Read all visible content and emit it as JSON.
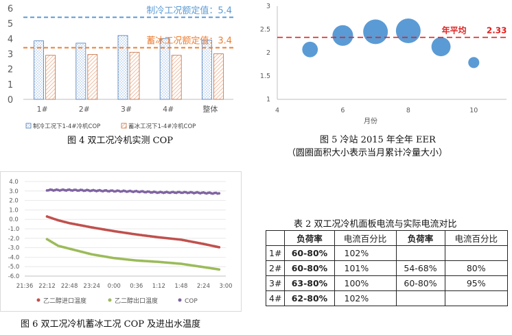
{
  "fig4": {
    "caption": "图 4 双工况冷机实测 COP",
    "chart_data": {
      "type": "bar",
      "categories": [
        "1#",
        "2#",
        "3#",
        "4#",
        "整体"
      ],
      "series": [
        {
          "name": "制冷工况下1-4#冷机COP",
          "values": [
            3.85,
            3.7,
            4.2,
            4.0,
            3.9
          ],
          "color": "#8db3e2"
        },
        {
          "name": "蓄冰工况下1-4#冷机COP",
          "values": [
            2.9,
            2.95,
            3.1,
            2.9,
            3.0
          ],
          "color": "#e9a27a"
        }
      ],
      "reference_lines": [
        {
          "label": "制冷工况额定值：5.4",
          "value": 5.4,
          "color": "#5b9bd5"
        },
        {
          "label": "蓄冰工况额定值：3.4",
          "value": 3.4,
          "color": "#ed7d31"
        }
      ],
      "y_ticks": [
        "0",
        "1",
        "2",
        "3",
        "4",
        "5",
        "6"
      ],
      "ylim": [
        0,
        6
      ]
    }
  },
  "fig5": {
    "caption_line1": "图 5 冷站 2015 年全年 EER",
    "caption_line2": "（圆圈面积大小表示当月累计冷量大小）",
    "chart_data": {
      "type": "scatter",
      "xlabel": "月份",
      "xlim": [
        4,
        11
      ],
      "ylim": [
        1,
        3
      ],
      "x_ticks": [
        "4",
        "6",
        "8",
        "10"
      ],
      "y_ticks": [
        "1",
        "1.5",
        "2",
        "2.5",
        "3"
      ],
      "points": [
        {
          "x": 5,
          "y": 2.07,
          "size": 0.4
        },
        {
          "x": 6,
          "y": 2.37,
          "size": 0.7
        },
        {
          "x": 7,
          "y": 2.45,
          "size": 1.0
        },
        {
          "x": 8,
          "y": 2.47,
          "size": 1.0
        },
        {
          "x": 9,
          "y": 2.13,
          "size": 0.6
        },
        {
          "x": 10,
          "y": 1.79,
          "size": 0.2
        }
      ],
      "bubble_color": "#5b9bd5",
      "average": {
        "value": 2.33,
        "label": "年平均",
        "value_text": "2.33",
        "color": "#e02020"
      }
    }
  },
  "fig6": {
    "caption": "图 6 双工况冷机蓄冰工况 COP 及进出水温度",
    "chart_data": {
      "type": "line",
      "x_ticks": [
        "21:36",
        "22:12",
        "22:48",
        "23:24",
        "0:00",
        "0:36",
        "1:12",
        "1:48",
        "2:24",
        "3:00"
      ],
      "y_ticks": [
        "4.0",
        "3.0",
        "2.0",
        "1.0",
        "0.0",
        "-1.0",
        "-2.0",
        "-3.0",
        "-4.0",
        "-5.0",
        "-6.0"
      ],
      "ylim": [
        -6,
        4
      ],
      "xlim_index": [
        0,
        9
      ],
      "series": [
        {
          "name": "乙二醇进口温度",
          "color": "#c0504d",
          "start": 0.3,
          "end": -3.0,
          "curve": [
            [
              1,
              0.3
            ],
            [
              1.5,
              -0.1
            ],
            [
              2,
              -0.4
            ],
            [
              3,
              -0.85
            ],
            [
              4,
              -1.25
            ],
            [
              5,
              -1.6
            ],
            [
              6,
              -1.9
            ],
            [
              7,
              -2.15
            ],
            [
              8,
              -2.6
            ],
            [
              8.7,
              -2.95
            ]
          ]
        },
        {
          "name": "乙二醇出口温度",
          "color": "#9bbb59",
          "start": -2.1,
          "end": -5.3,
          "curve": [
            [
              1,
              -2.1
            ],
            [
              1.5,
              -2.8
            ],
            [
              2,
              -3.1
            ],
            [
              3,
              -3.7
            ],
            [
              4,
              -4.1
            ],
            [
              5,
              -4.35
            ],
            [
              6,
              -4.5
            ],
            [
              7,
              -4.7
            ],
            [
              8,
              -5.05
            ],
            [
              8.7,
              -5.3
            ]
          ]
        },
        {
          "name": "COP",
          "color": "#8064a2",
          "start": 3.1,
          "end": 2.75,
          "curve": [
            [
              1,
              3.1
            ],
            [
              2,
              3.1
            ],
            [
              3,
              3.05
            ],
            [
              4,
              3.0
            ],
            [
              5,
              2.95
            ],
            [
              6,
              2.85
            ],
            [
              7,
              2.85
            ],
            [
              8,
              2.8
            ],
            [
              8.7,
              2.75
            ]
          ]
        }
      ]
    }
  },
  "table2": {
    "caption": "表 2 双工况冷机面板电流与实际电流对比",
    "headers": [
      "",
      "负荷率",
      "电流百分比",
      "负荷率",
      "电流百分比"
    ],
    "rows": [
      [
        "1#",
        "60-80%",
        "102%",
        "",
        ""
      ],
      [
        "2#",
        "60-80%",
        "101%",
        "54-68%",
        "80%"
      ],
      [
        "3#",
        "63-80%",
        "100%",
        "60-80%",
        "95%"
      ],
      [
        "4#",
        "62-80%",
        "102%",
        "",
        ""
      ]
    ]
  }
}
